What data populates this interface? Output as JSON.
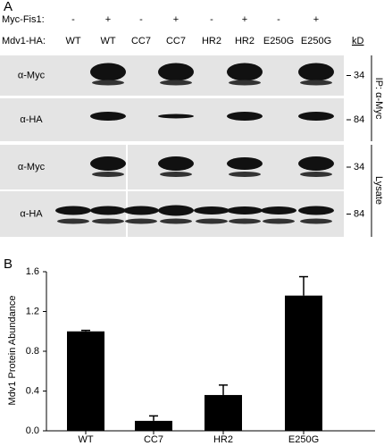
{
  "panel_a": {
    "label": "A",
    "myc_fis1_label": "Myc-Fis1:",
    "myc_fis1": [
      "-",
      "+",
      "-",
      "+",
      "-",
      "+",
      "-",
      "+"
    ],
    "mdv1_label": "Mdv1-HA:",
    "lanes": [
      "WT",
      "WT",
      "CC7",
      "CC7",
      "HR2",
      "HR2",
      "E250G",
      "E250G"
    ],
    "kd_label": "kD",
    "blots": [
      {
        "label": "α-Myc",
        "kd": 34
      },
      {
        "label": "α-HA",
        "kd": 84
      },
      {
        "label": "α-Myc",
        "kd": 34
      },
      {
        "label": "α-HA",
        "kd": 84
      }
    ],
    "groups": [
      {
        "label": "IP: α-Myc"
      },
      {
        "label": "Lysate"
      }
    ]
  },
  "chart_data": {
    "type": "bar",
    "panel_label": "B",
    "ylabel": "Mdv1 Protein Abundance",
    "categories": [
      "WT",
      "CC7",
      "HR2",
      "E250G"
    ],
    "values": [
      1.0,
      0.1,
      0.36,
      1.36
    ],
    "errors": [
      0.01,
      0.05,
      0.1,
      0.19
    ],
    "color": "#000000",
    "ylim": [
      0,
      1.6
    ],
    "yticks": [
      {
        "value": 0,
        "label": "0.0"
      },
      0.4,
      0.8,
      1.2,
      1.6
    ]
  }
}
